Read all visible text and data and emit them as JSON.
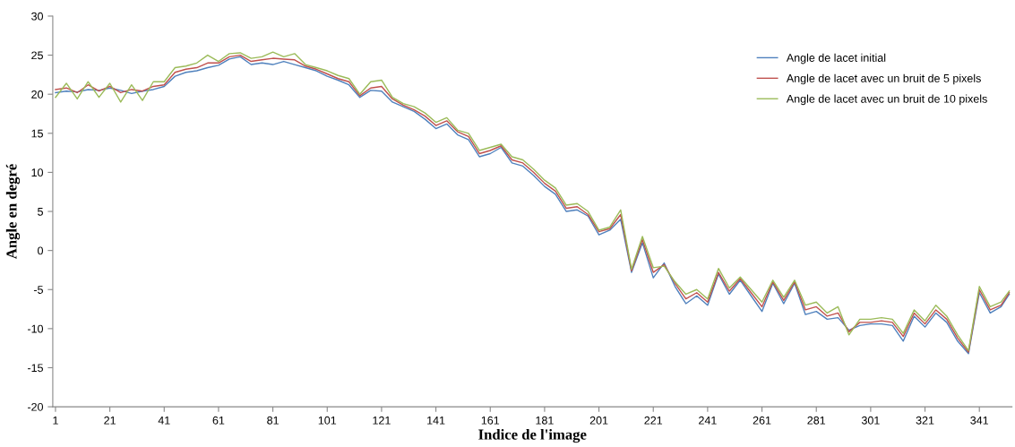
{
  "chart_data": {
    "type": "line",
    "xlabel": "Indice de l'image",
    "ylabel": "Angle en degré",
    "x": [
      1,
      5,
      9,
      13,
      17,
      21,
      25,
      29,
      33,
      37,
      41,
      45,
      49,
      53,
      57,
      61,
      65,
      69,
      73,
      77,
      81,
      85,
      89,
      93,
      97,
      101,
      105,
      109,
      113,
      117,
      121,
      125,
      129,
      133,
      137,
      141,
      145,
      149,
      153,
      157,
      161,
      165,
      169,
      173,
      177,
      181,
      185,
      189,
      193,
      197,
      201,
      205,
      209,
      213,
      217,
      221,
      225,
      229,
      233,
      237,
      241,
      245,
      249,
      253,
      257,
      261,
      265,
      269,
      273,
      277,
      281,
      285,
      289,
      293,
      297,
      301,
      305,
      309,
      313,
      317,
      321,
      325,
      329,
      333,
      337,
      341,
      345,
      349,
      352
    ],
    "series": [
      {
        "name": "Angle de lacet initial",
        "color": "#4f81bd",
        "values": [
          20.2,
          20.4,
          20.3,
          20.6,
          20.5,
          20.8,
          20.5,
          20.1,
          20.4,
          20.6,
          21.0,
          22.3,
          22.8,
          23.0,
          23.4,
          23.7,
          24.5,
          24.8,
          23.8,
          24.0,
          23.8,
          24.2,
          23.8,
          23.4,
          23.0,
          22.3,
          21.8,
          21.2,
          19.6,
          20.5,
          20.4,
          19.0,
          18.4,
          17.8,
          16.8,
          15.6,
          16.2,
          14.8,
          14.2,
          12.0,
          12.4,
          13.2,
          11.2,
          10.8,
          9.6,
          8.2,
          7.2,
          5.0,
          5.2,
          4.4,
          2.0,
          2.6,
          4.0,
          -2.8,
          1.0,
          -3.5,
          -1.6,
          -4.6,
          -6.8,
          -5.8,
          -7.0,
          -3.0,
          -5.6,
          -3.8,
          -5.8,
          -7.8,
          -4.2,
          -6.8,
          -4.2,
          -8.2,
          -7.8,
          -8.8,
          -8.6,
          -10.2,
          -9.6,
          -9.4,
          -9.4,
          -9.6,
          -11.6,
          -8.4,
          -9.8,
          -8.0,
          -9.2,
          -11.6,
          -13.2,
          -5.4,
          -8.0,
          -7.2,
          -5.6
        ]
      },
      {
        "name": "Angle de lacet avec un bruit de 5 pixels",
        "color": "#c0504d",
        "values": [
          20.6,
          20.8,
          20.2,
          21.2,
          20.4,
          21.0,
          20.2,
          20.6,
          20.4,
          21.0,
          21.2,
          22.8,
          23.2,
          23.4,
          24.0,
          24.0,
          24.8,
          25.0,
          24.2,
          24.4,
          24.6,
          24.5,
          24.4,
          23.6,
          23.2,
          22.6,
          22.0,
          21.6,
          19.8,
          20.8,
          21.0,
          19.4,
          18.6,
          18.0,
          17.2,
          16.0,
          16.6,
          15.2,
          14.6,
          12.4,
          12.8,
          13.4,
          11.6,
          11.2,
          10.0,
          8.6,
          7.6,
          5.4,
          5.6,
          4.6,
          2.4,
          2.8,
          4.6,
          -2.6,
          1.4,
          -2.8,
          -1.8,
          -4.2,
          -6.2,
          -5.4,
          -6.6,
          -2.8,
          -5.2,
          -3.6,
          -5.4,
          -7.2,
          -4.0,
          -6.4,
          -4.0,
          -7.6,
          -7.2,
          -8.4,
          -8.0,
          -10.4,
          -9.2,
          -9.2,
          -9.0,
          -9.2,
          -11.0,
          -8.0,
          -9.4,
          -7.6,
          -8.8,
          -11.2,
          -13.0,
          -5.0,
          -7.6,
          -7.0,
          -5.4
        ]
      },
      {
        "name": "Angle de lacet avec un bruit de 10 pixels",
        "color": "#9bbb59",
        "values": [
          19.6,
          21.4,
          19.4,
          21.6,
          19.6,
          21.4,
          19.0,
          21.2,
          19.2,
          21.6,
          21.6,
          23.4,
          23.6,
          24.0,
          25.0,
          24.2,
          25.2,
          25.3,
          24.6,
          24.8,
          25.4,
          24.8,
          25.2,
          23.8,
          23.4,
          23.0,
          22.4,
          22.0,
          20.0,
          21.6,
          21.8,
          19.6,
          18.8,
          18.4,
          17.6,
          16.4,
          17.0,
          15.4,
          15.0,
          12.8,
          13.2,
          13.6,
          12.0,
          11.6,
          10.4,
          9.0,
          8.0,
          5.8,
          6.0,
          5.0,
          2.6,
          3.0,
          5.2,
          -2.4,
          1.8,
          -2.2,
          -2.0,
          -4.0,
          -5.6,
          -5.0,
          -6.2,
          -2.3,
          -4.8,
          -3.4,
          -5.0,
          -6.6,
          -3.8,
          -6.0,
          -3.8,
          -7.0,
          -6.6,
          -8.0,
          -7.2,
          -10.8,
          -8.8,
          -8.8,
          -8.6,
          -8.8,
          -10.6,
          -7.6,
          -9.0,
          -7.0,
          -8.4,
          -10.8,
          -12.8,
          -4.6,
          -7.2,
          -6.6,
          -5.2
        ]
      }
    ],
    "xlim": [
      0,
      353
    ],
    "xticks": [
      1,
      21,
      41,
      61,
      81,
      101,
      121,
      141,
      161,
      181,
      201,
      221,
      241,
      261,
      281,
      301,
      321,
      341
    ],
    "ylim": [
      -20,
      30
    ],
    "yticks": [
      -20,
      -15,
      -10,
      -5,
      0,
      5,
      10,
      15,
      20,
      25,
      30
    ],
    "grid": false,
    "legend": "top right",
    "marker": "none",
    "line_style": "solid"
  }
}
